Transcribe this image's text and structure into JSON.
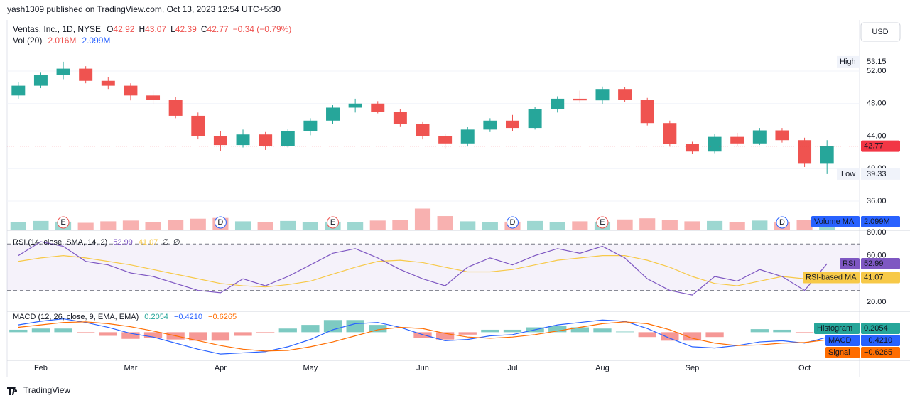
{
  "chart_data": [
    {
      "type": "candlestick",
      "published": "yash1309 published on TradingView.com, Oct 13, 2023 12:54 UTC+5:30",
      "title": "Ventas, Inc., 1D, NYSE",
      "currency": "USD",
      "ohlc_labels": [
        "O",
        "H",
        "L",
        "C"
      ],
      "ohlc_values": [
        42.92,
        43.07,
        42.39,
        42.77
      ],
      "change": "−0.34 (−0.79%)",
      "categories": [
        null,
        "Feb",
        null,
        null,
        null,
        "Mar",
        null,
        null,
        null,
        "Apr",
        null,
        null,
        null,
        "May",
        null,
        null,
        null,
        null,
        "Jun",
        null,
        null,
        null,
        "Jul",
        null,
        null,
        null,
        "Aug",
        null,
        null,
        null,
        "Sep",
        null,
        null,
        null,
        null,
        "Oct",
        null
      ],
      "open": [
        49.0,
        50.2,
        51.5,
        52.3,
        50.8,
        50.2,
        49.0,
        48.5,
        46.5,
        44.0,
        42.9,
        44.2,
        42.8,
        44.6,
        45.9,
        47.5,
        48.0,
        47.0,
        45.5,
        44.0,
        43.1,
        44.8,
        45.9,
        45.0,
        47.3,
        48.6,
        48.4,
        49.8,
        48.5,
        45.6,
        43.0,
        42.1,
        43.9,
        43.1,
        44.7,
        43.5,
        40.6
      ],
      "high": [
        50.6,
        51.8,
        53.15,
        52.6,
        51.3,
        50.5,
        49.6,
        48.8,
        46.9,
        44.6,
        44.8,
        44.5,
        44.9,
        46.2,
        47.8,
        48.6,
        48.3,
        47.3,
        45.8,
        44.3,
        45.1,
        46.2,
        46.6,
        47.6,
        48.9,
        49.6,
        50.1,
        50.0,
        48.7,
        45.9,
        43.3,
        44.3,
        44.4,
        45.0,
        45.0,
        43.8,
        43.5
      ],
      "low": [
        48.6,
        49.9,
        51.0,
        50.5,
        49.8,
        48.4,
        47.9,
        46.2,
        43.6,
        42.2,
        42.6,
        42.3,
        42.6,
        44.1,
        45.5,
        46.9,
        46.8,
        45.2,
        43.6,
        42.5,
        42.8,
        44.5,
        44.6,
        44.8,
        46.9,
        48.1,
        47.9,
        48.2,
        45.3,
        42.7,
        41.8,
        41.9,
        42.8,
        42.9,
        43.2,
        40.2,
        39.33
      ],
      "close": [
        50.2,
        51.5,
        52.3,
        50.8,
        50.2,
        49.0,
        48.5,
        46.5,
        44.0,
        42.9,
        44.2,
        42.8,
        44.6,
        45.9,
        47.5,
        48.0,
        47.0,
        45.5,
        44.0,
        43.1,
        44.8,
        45.9,
        45.0,
        47.3,
        48.6,
        48.4,
        49.8,
        48.5,
        45.6,
        43.0,
        42.1,
        43.9,
        43.1,
        44.7,
        43.5,
        40.6,
        42.77
      ],
      "up_color": "#26a69a",
      "down_color": "#ef5350",
      "ylim": [
        32.5,
        58.3
      ],
      "yticks": [
        {
          "value": 36,
          "label": "36.00"
        },
        {
          "value": 40,
          "label": "40.00"
        },
        {
          "value": 44,
          "label": "44.00"
        },
        {
          "value": 48,
          "label": "48.00"
        },
        {
          "value": 52,
          "label": "52.00"
        }
      ],
      "high_label": "High",
      "low_label": "Low",
      "series": [
        {
          "name": "Vol (20)",
          "axis": "y2",
          "values": [
            1.9,
            2.3,
            2.1,
            1.8,
            2.2,
            2.4,
            2.0,
            2.6,
            2.9,
            3.1,
            2.2,
            2.0,
            2.3,
            1.9,
            2.1,
            2.0,
            2.4,
            2.6,
            5.6,
            3.6,
            2.2,
            2.0,
            2.1,
            2.3,
            1.9,
            2.2,
            2.0,
            2.7,
            3.0,
            2.5,
            2.2,
            2.3,
            2.0,
            2.4,
            2.1,
            2.6,
            2.0
          ],
          "legend_values": [
            {
              "value": 2.016,
              "label": "2.016M"
            },
            {
              "value": 2.099,
              "label": "2.099M"
            }
          ],
          "ma_label": "Volume MA"
        }
      ],
      "y2lim": [
        0,
        56
      ],
      "events": [
        {
          "label": "E",
          "category": 2
        },
        {
          "label": "D",
          "category": 9
        },
        {
          "label": "E",
          "category": 14
        },
        {
          "label": "D",
          "category": 22
        },
        {
          "label": "E",
          "category": 26
        },
        {
          "label": "D",
          "category": 34
        }
      ],
      "footer": "TradingView"
    },
    {
      "type": "line",
      "title": "RSI (14, close, SMA, 14, 2)",
      "extra": [
        "∅",
        "∅"
      ],
      "series": [
        {
          "name": "RSI",
          "color": "#7e57c2",
          "values": [
            60,
            72,
            68,
            55,
            52,
            45,
            42,
            36,
            30,
            28,
            40,
            34,
            42,
            52,
            62,
            66,
            58,
            48,
            40,
            34,
            50,
            58,
            52,
            60,
            66,
            62,
            68,
            58,
            40,
            30,
            26,
            42,
            38,
            48,
            42,
            30,
            52.99
          ]
        },
        {
          "name": "RSI-based MA",
          "color": "#f7c948",
          "values": [
            55,
            58,
            60,
            58,
            55,
            52,
            48,
            44,
            40,
            36,
            34,
            33,
            35,
            38,
            44,
            50,
            55,
            56,
            54,
            50,
            46,
            46,
            48,
            52,
            56,
            58,
            60,
            60,
            56,
            50,
            42,
            36,
            34,
            38,
            42,
            40,
            41.07
          ]
        }
      ],
      "ylim": [
        12.6,
        81.2
      ],
      "yticks": [
        {
          "value": 80,
          "label": "80.00"
        },
        {
          "value": 60,
          "label": "60.00"
        },
        {
          "value": 20,
          "label": "20.00"
        }
      ],
      "bands": [
        70,
        30
      ]
    },
    {
      "type": "macd",
      "title": "MACD (12, 26, close, 9, EMA, EMA)",
      "ylim": [
        -2.2,
        1.6
      ],
      "series": [
        {
          "name": "Histogram",
          "color": "#26a69a",
          "down_color": "#ef5350",
          "values": [
            0.2,
            0.3,
            0.3,
            -0.05,
            -0.3,
            -0.55,
            -0.5,
            -0.6,
            -0.7,
            -0.7,
            -0.3,
            -0.05,
            0.3,
            0.6,
            1.0,
            1.0,
            0.6,
            0,
            -0.5,
            -0.6,
            -0.2,
            0.2,
            0.2,
            0.4,
            0.5,
            0.4,
            0.3,
            0.05,
            -0.4,
            -0.7,
            -0.7,
            -0.4,
            0,
            0.25,
            0.2,
            -0.05,
            0.2054
          ],
          "last": {
            "value": 0.2054,
            "label": "0.2054"
          }
        },
        {
          "name": "MACD",
          "color": "#2962ff",
          "values": [
            0.6,
            0.9,
            1.1,
            0.8,
            0.4,
            -0.1,
            -0.4,
            -0.9,
            -1.4,
            -1.8,
            -1.7,
            -1.6,
            -1.2,
            -0.6,
            0.2,
            0.7,
            0.8,
            0.4,
            -0.2,
            -0.7,
            -0.6,
            -0.3,
            -0.2,
            0.2,
            0.6,
            0.8,
            1.0,
            0.9,
            0.3,
            -0.5,
            -1.2,
            -1.3,
            -1.1,
            -0.8,
            -0.7,
            -0.9,
            -0.421
          ],
          "last": {
            "value": -0.421,
            "label": "−0.4210"
          }
        },
        {
          "name": "Signal",
          "color": "#ff6d00",
          "values": [
            0.4,
            0.6,
            0.8,
            0.85,
            0.7,
            0.45,
            0.1,
            -0.3,
            -0.7,
            -1.1,
            -1.4,
            -1.55,
            -1.5,
            -1.2,
            -0.8,
            -0.3,
            0.2,
            0.4,
            0.3,
            -0.1,
            -0.4,
            -0.5,
            -0.4,
            -0.2,
            0.1,
            0.4,
            0.7,
            0.85,
            0.7,
            0.2,
            -0.5,
            -0.9,
            -1.1,
            -1.05,
            -0.9,
            -0.85,
            -0.6265
          ],
          "last": {
            "value": -0.6265,
            "label": "−0.6265"
          }
        }
      ]
    }
  ]
}
